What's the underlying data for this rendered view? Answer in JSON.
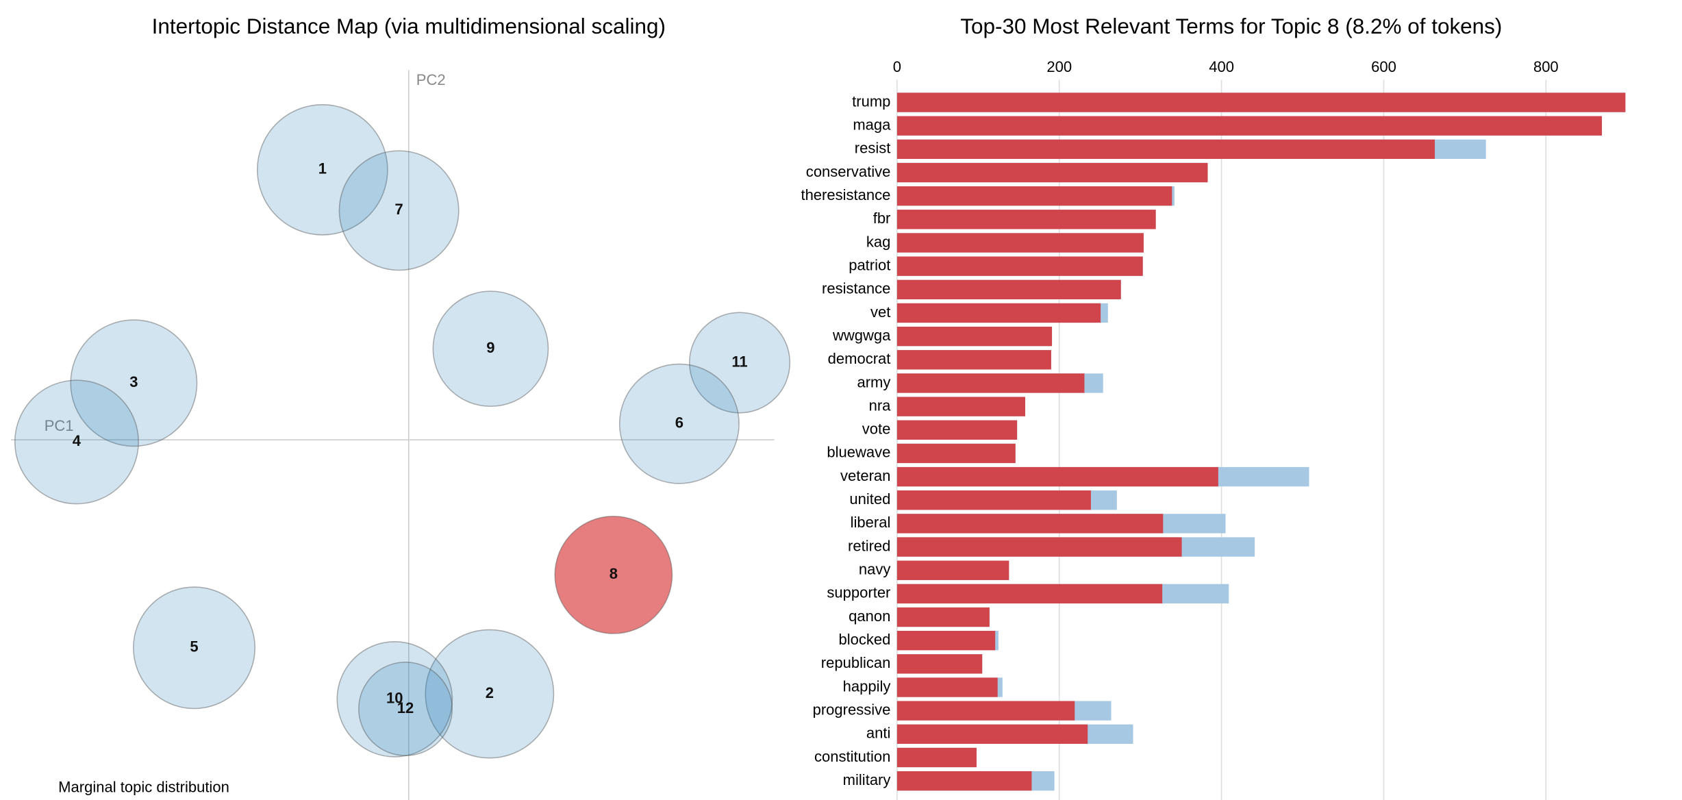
{
  "chart_data": [
    {
      "type": "scatter",
      "title": "Intertopic Distance Map (via multidimensional scaling)",
      "x_label": "PC1",
      "y_label": "PC2",
      "annotation": "Marginal topic distribution",
      "labels": [
        "1",
        "7",
        "9",
        "3",
        "4",
        "11",
        "6",
        "8",
        "5",
        "2",
        "10",
        "12"
      ],
      "x": [
        -0.08,
        -0.009,
        0.076,
        -0.255,
        -0.308,
        0.307,
        0.251,
        0.19,
        -0.199,
        0.075,
        -0.013,
        -0.003
      ],
      "y": [
        0.252,
        0.214,
        0.085,
        0.053,
        -0.002,
        0.072,
        0.015,
        -0.126,
        -0.194,
        -0.237,
        -0.242,
        -0.251
      ],
      "sizes": [
        10.1,
        8.5,
        7.9,
        9.5,
        9.1,
        6.0,
        8.5,
        8.2,
        8.8,
        9.8,
        7.9,
        5.2
      ],
      "colors": [
        "#1f77b433",
        "#1f77b433",
        "#1f77b433",
        "#1f77b433",
        "#1f77b433",
        "#1f77b433",
        "#1f77b433",
        "#d6272899",
        "#1f77b433",
        "#1f77b433",
        "#1f77b433",
        "#1f77b433"
      ],
      "xlim": [
        -0.369,
        0.339
      ],
      "ylim": [
        -0.336,
        0.345
      ]
    },
    {
      "type": "bar",
      "orientation": "horizontal",
      "title": "Top-30 Most Relevant Terms for Topic 8 (8.2% of tokens)",
      "categories": [
        "trump",
        "maga",
        "resist",
        "conservative",
        "theresistance",
        "fbr",
        "kag",
        "patriot",
        "resistance",
        "vet",
        "wwgwga",
        "democrat",
        "army",
        "nra",
        "vote",
        "bluewave",
        "veteran",
        "united",
        "liberal",
        "retired",
        "navy",
        "supporter",
        "qanon",
        "blocked",
        "republican",
        "happily",
        "progressive",
        "anti",
        "constitution",
        "military"
      ],
      "series": [
        {
          "color": "#a6c8e3",
          "values": [
            898,
            869,
            726,
            383,
            342,
            319,
            304,
            303,
            276,
            260,
            191,
            190,
            254,
            158,
            148,
            146,
            508,
            271,
            405,
            441,
            138,
            409,
            114,
            125,
            105,
            130,
            264,
            291,
            98,
            194
          ]
        },
        {
          "color": "#d0444c",
          "values": [
            898,
            869,
            663,
            383,
            339,
            319,
            304,
            303,
            276,
            251,
            191,
            190,
            231,
            158,
            148,
            146,
            396,
            239,
            328,
            351,
            138,
            327,
            114,
            121,
            105,
            124,
            219,
            235,
            98,
            166
          ]
        }
      ],
      "xlim": [
        0,
        945
      ],
      "xticks": [
        0,
        200,
        400,
        600,
        800
      ],
      "grid": true
    }
  ]
}
